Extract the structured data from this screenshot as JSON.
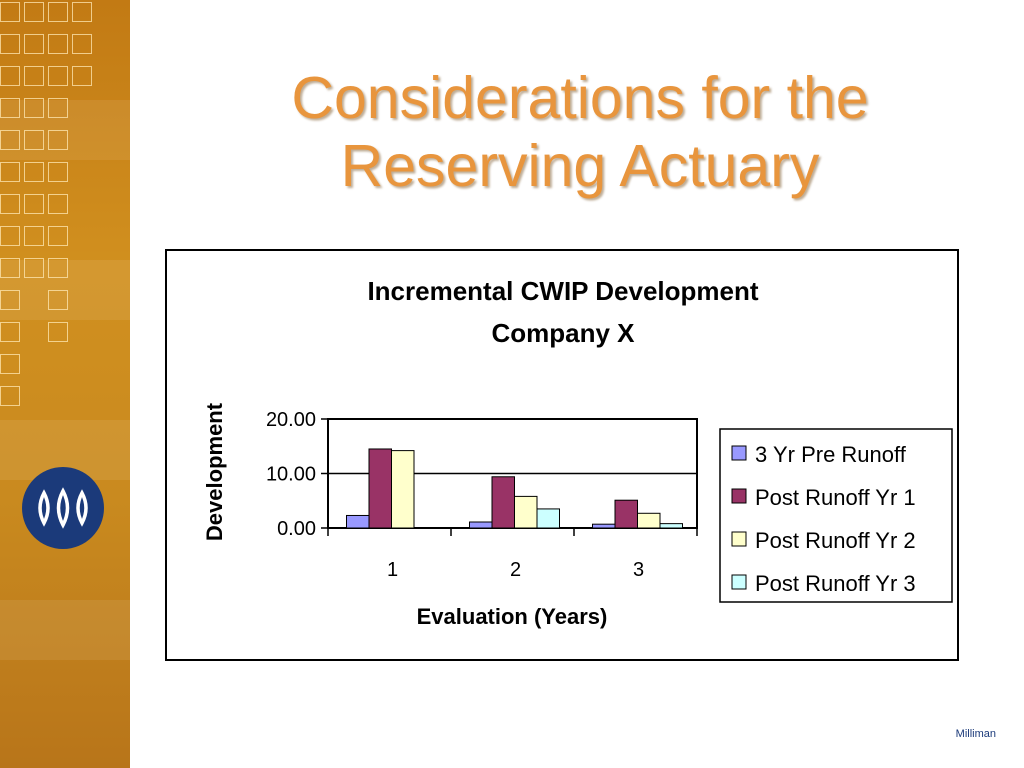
{
  "slide": {
    "title_line1": "Considerations for the",
    "title_line2": "Reserving Actuary",
    "footer": "Milliman"
  },
  "sidebar": {
    "logo_icon": "milliman-logo-icon",
    "accent_color": "#c98a1f",
    "logo_color": "#1b3a7a"
  },
  "chart_data": {
    "type": "bar",
    "title": "Incremental CWIP Development",
    "subtitle": "Company X",
    "xlabel": "Evaluation (Years)",
    "ylabel": "Development",
    "categories": [
      "1",
      "2",
      "3"
    ],
    "ylim": [
      0,
      20
    ],
    "yticks": [
      "0.00",
      "10.00",
      "20.00"
    ],
    "grid": true,
    "legend": "right",
    "series": [
      {
        "name": "3 Yr Pre Runoff",
        "values": [
          2.3,
          1.1,
          0.7
        ],
        "color": "#9999ff"
      },
      {
        "name": "Post Runoff Yr 1",
        "values": [
          14.5,
          9.4,
          5.1
        ],
        "color": "#993366"
      },
      {
        "name": "Post Runoff Yr 2",
        "values": [
          14.2,
          5.8,
          2.7
        ],
        "color": "#ffffcc"
      },
      {
        "name": "Post Runoff Yr 3",
        "values": [
          null,
          3.5,
          0.8
        ],
        "color": "#ccffff"
      }
    ]
  }
}
